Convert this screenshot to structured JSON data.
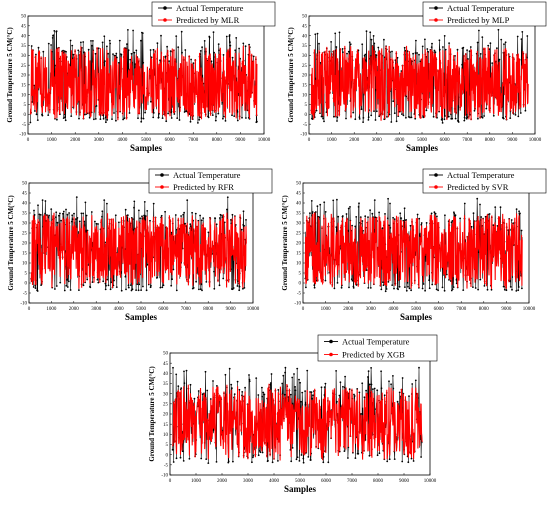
{
  "chart_data": [
    {
      "type": "line",
      "xlabel": "Samples",
      "ylabel": "Ground Temperature 5 CM(°C)",
      "xlim": [
        0,
        10000
      ],
      "ylim": [
        -10,
        50
      ],
      "x_ticks": [
        0,
        1000,
        2000,
        3000,
        4000,
        5000,
        6000,
        7000,
        8000,
        9000,
        10000
      ],
      "y_ticks": [
        -10,
        -5,
        0,
        5,
        10,
        15,
        20,
        25,
        30,
        35,
        40,
        45,
        50
      ],
      "legend_position": "top-right",
      "series": [
        {
          "name": "Actual Temperature",
          "color": "#000000",
          "marker": "circle",
          "sample_count": 9800,
          "approx_range": [
            -4,
            44
          ]
        },
        {
          "name": "Predicted by MLR",
          "color": "#ff0000",
          "marker": "none",
          "sample_count": 9800,
          "approx_range": [
            -3,
            38
          ]
        }
      ]
    },
    {
      "type": "line",
      "xlabel": "Samples",
      "ylabel": "Ground Temperature 5 CM(°C)",
      "xlim": [
        0,
        10000
      ],
      "ylim": [
        -10,
        50
      ],
      "x_ticks": [
        0,
        1000,
        2000,
        3000,
        4000,
        5000,
        6000,
        7000,
        8000,
        9000,
        10000
      ],
      "y_ticks": [
        -10,
        -5,
        0,
        5,
        10,
        15,
        20,
        25,
        30,
        35,
        40,
        45,
        50
      ],
      "legend_position": "top-right",
      "series": [
        {
          "name": "Actual Temperature",
          "color": "#000000",
          "marker": "circle",
          "sample_count": 9800,
          "approx_range": [
            -4,
            44
          ]
        },
        {
          "name": "Predicted by MLP",
          "color": "#ff0000",
          "marker": "none",
          "sample_count": 9800,
          "approx_range": [
            -3,
            38
          ]
        }
      ]
    },
    {
      "type": "line",
      "xlabel": "Samples",
      "ylabel": "Ground Temperature 5 CM(°C)",
      "xlim": [
        0,
        10000
      ],
      "ylim": [
        -10,
        50
      ],
      "x_ticks": [
        0,
        1000,
        2000,
        3000,
        4000,
        5000,
        6000,
        7000,
        8000,
        9000,
        10000
      ],
      "y_ticks": [
        -10,
        -5,
        0,
        5,
        10,
        15,
        20,
        25,
        30,
        35,
        40,
        45,
        50
      ],
      "legend_position": "top-right",
      "series": [
        {
          "name": "Actual Temperature",
          "color": "#000000",
          "marker": "circle",
          "sample_count": 9800,
          "approx_range": [
            -4,
            44
          ]
        },
        {
          "name": "Predicted by RFR",
          "color": "#ff0000",
          "marker": "none",
          "sample_count": 9800,
          "approx_range": [
            -3,
            38
          ]
        }
      ]
    },
    {
      "type": "line",
      "xlabel": "Samples",
      "ylabel": "Ground Temperature 5 CM(°C)",
      "xlim": [
        0,
        10000
      ],
      "ylim": [
        -10,
        50
      ],
      "x_ticks": [
        0,
        1000,
        2000,
        3000,
        4000,
        5000,
        6000,
        7000,
        8000,
        9000,
        10000
      ],
      "y_ticks": [
        -10,
        -5,
        0,
        5,
        10,
        15,
        20,
        25,
        30,
        35,
        40,
        45,
        50
      ],
      "legend_position": "top-right",
      "series": [
        {
          "name": "Actual Temperature",
          "color": "#000000",
          "marker": "circle",
          "sample_count": 9800,
          "approx_range": [
            -4,
            44
          ]
        },
        {
          "name": "Predicted by SVR",
          "color": "#ff0000",
          "marker": "none",
          "sample_count": 9800,
          "approx_range": [
            -3,
            38
          ]
        }
      ]
    },
    {
      "type": "line",
      "xlabel": "Samples",
      "ylabel": "Ground Temperature 5 CM(°C)",
      "xlim": [
        0,
        10000
      ],
      "ylim": [
        -10,
        50
      ],
      "x_ticks": [
        0,
        1000,
        2000,
        3000,
        4000,
        5000,
        6000,
        7000,
        8000,
        9000,
        10000
      ],
      "y_ticks": [
        -10,
        -5,
        0,
        5,
        10,
        15,
        20,
        25,
        30,
        35,
        40,
        45,
        50
      ],
      "legend_position": "top-right",
      "series": [
        {
          "name": "Actual Temperature",
          "color": "#000000",
          "marker": "circle",
          "sample_count": 9800,
          "approx_range": [
            -4,
            44
          ]
        },
        {
          "name": "Predicted by XGB",
          "color": "#ff0000",
          "marker": "none",
          "sample_count": 9800,
          "approx_range": [
            -3,
            38
          ]
        }
      ]
    }
  ]
}
